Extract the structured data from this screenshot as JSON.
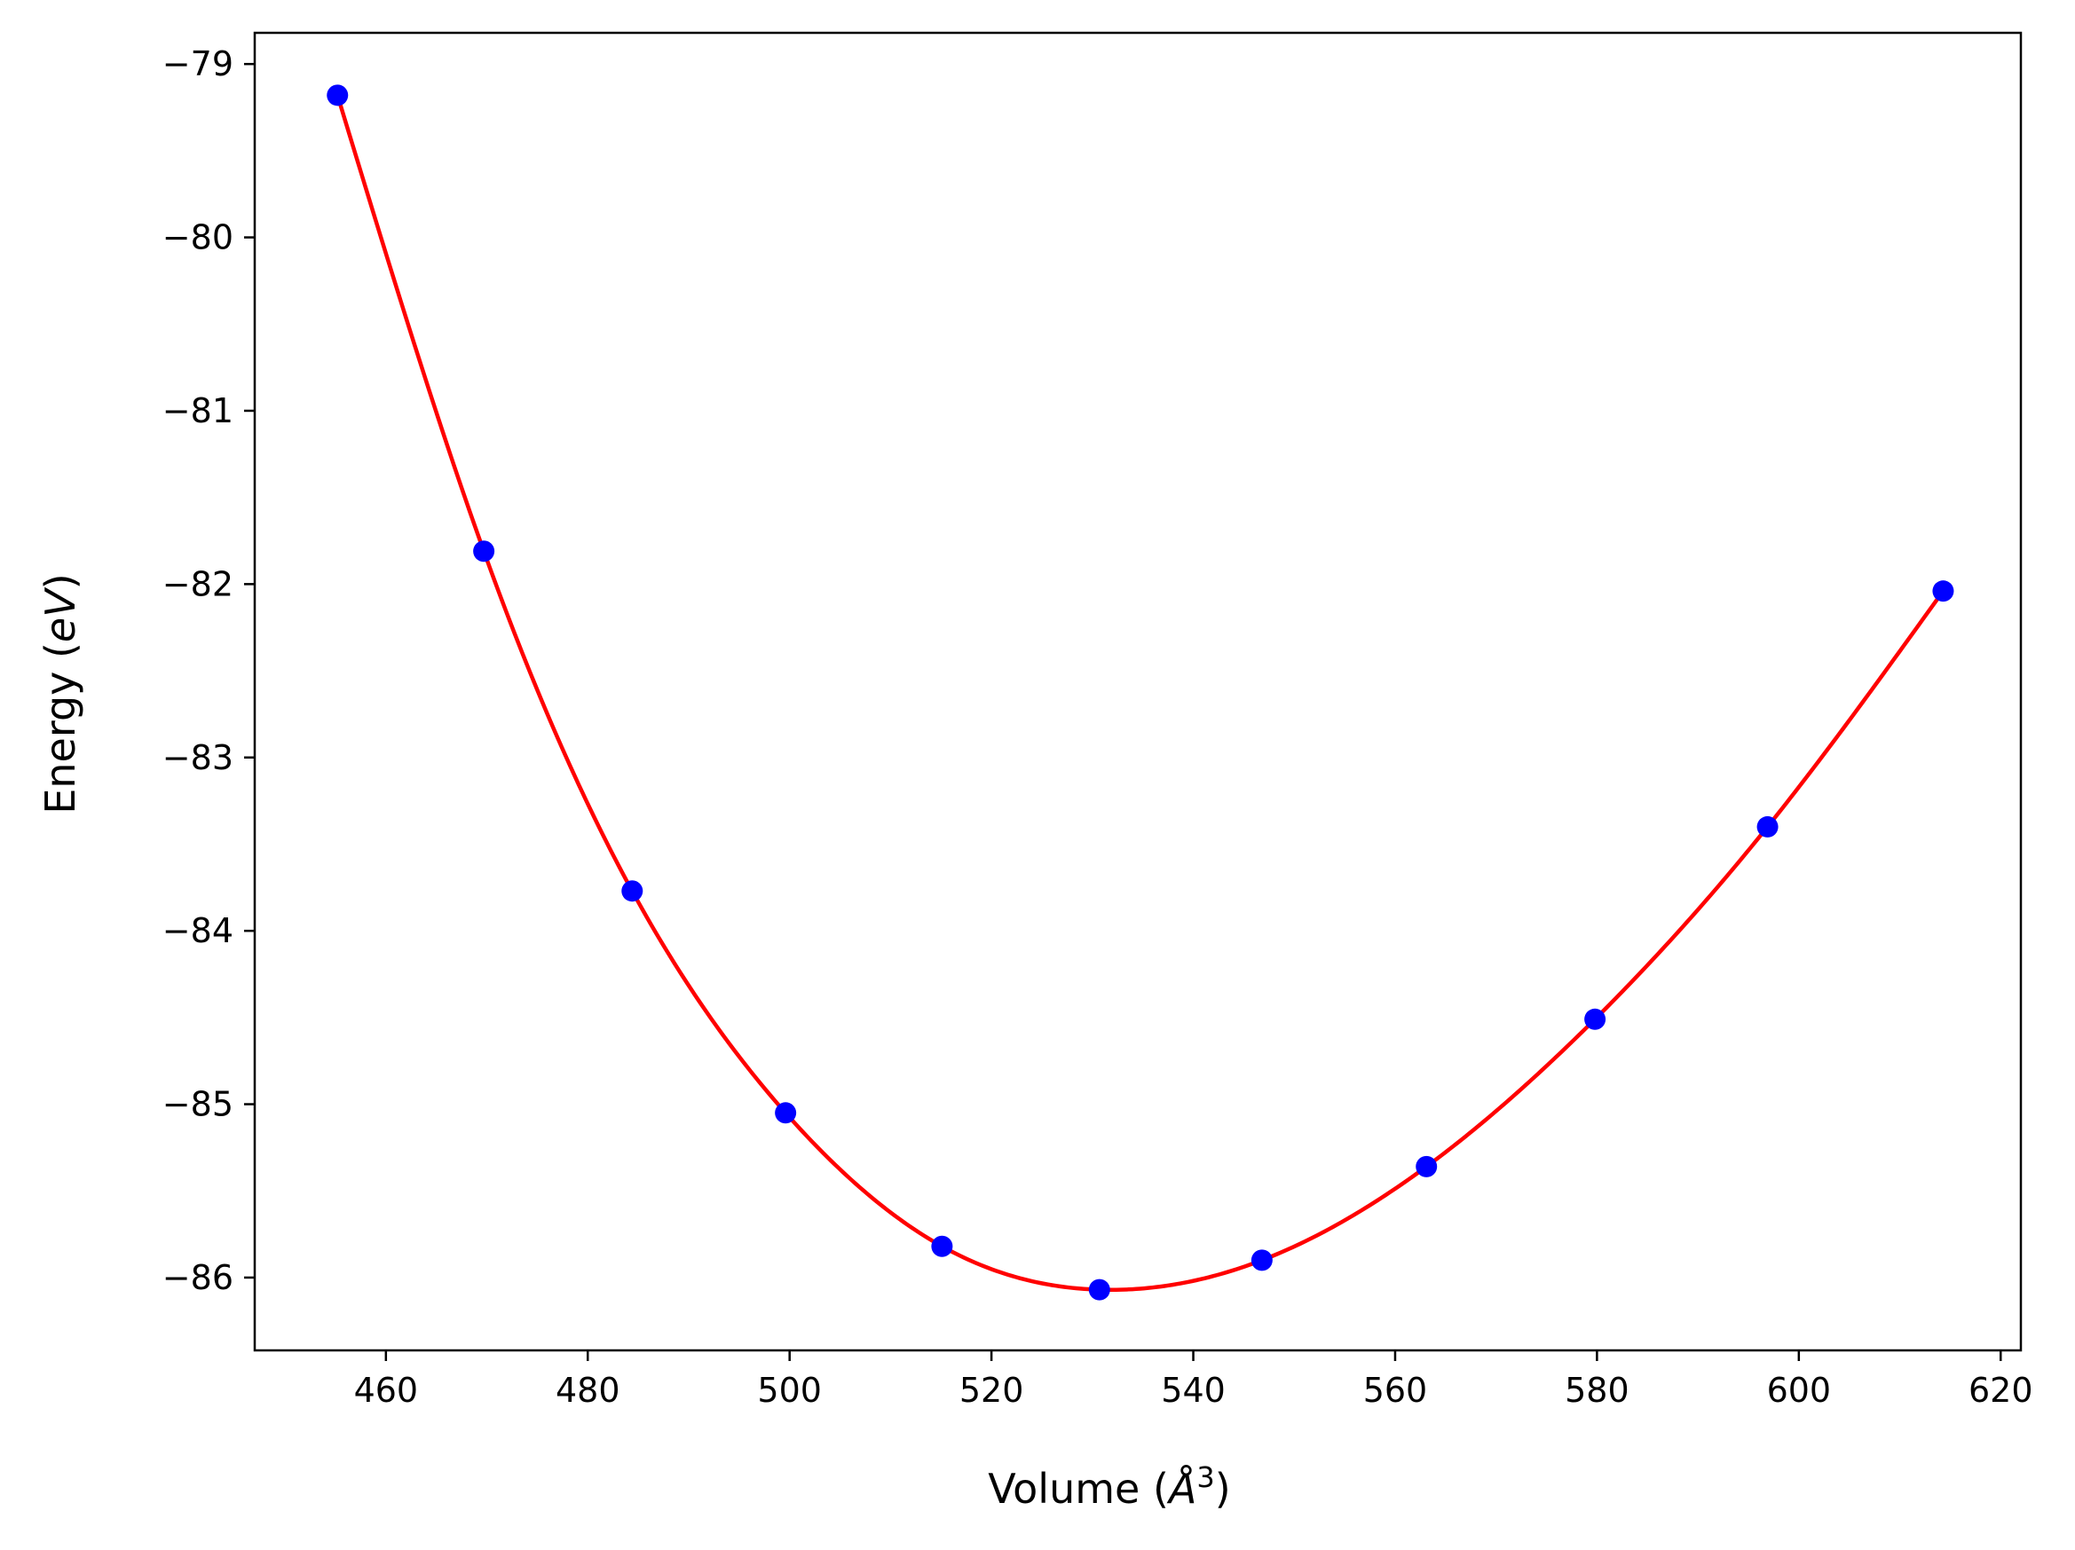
{
  "chart_data": {
    "type": "line",
    "xlabel": "Volume",
    "xlabel_unit": "Å",
    "xlabel_unit_sup": "3",
    "ylabel": "Energy",
    "ylabel_unit": "eV",
    "xlim": [
      447.0,
      622.0
    ],
    "ylim": [
      -86.42,
      -78.82
    ],
    "xticks": [
      460,
      480,
      500,
      520,
      540,
      560,
      580,
      600,
      620
    ],
    "yticks": [
      -79,
      -80,
      -81,
      -82,
      -83,
      -84,
      -85,
      -86
    ],
    "grid": false,
    "legend": "none",
    "series": [
      {
        "kind": "scatter",
        "color": "#0000ff",
        "points": [
          [
            455.2,
            -79.18
          ],
          [
            469.7,
            -81.81
          ],
          [
            484.4,
            -83.77
          ],
          [
            499.6,
            -85.05
          ],
          [
            515.1,
            -85.82
          ],
          [
            530.7,
            -86.07
          ],
          [
            546.8,
            -85.9
          ],
          [
            563.1,
            -85.36
          ],
          [
            579.8,
            -84.51
          ],
          [
            596.9,
            -83.4
          ],
          [
            614.3,
            -82.04
          ]
        ]
      },
      {
        "kind": "fit",
        "color": "#ff0000",
        "description": "smooth fitted curve through the points"
      }
    ]
  }
}
